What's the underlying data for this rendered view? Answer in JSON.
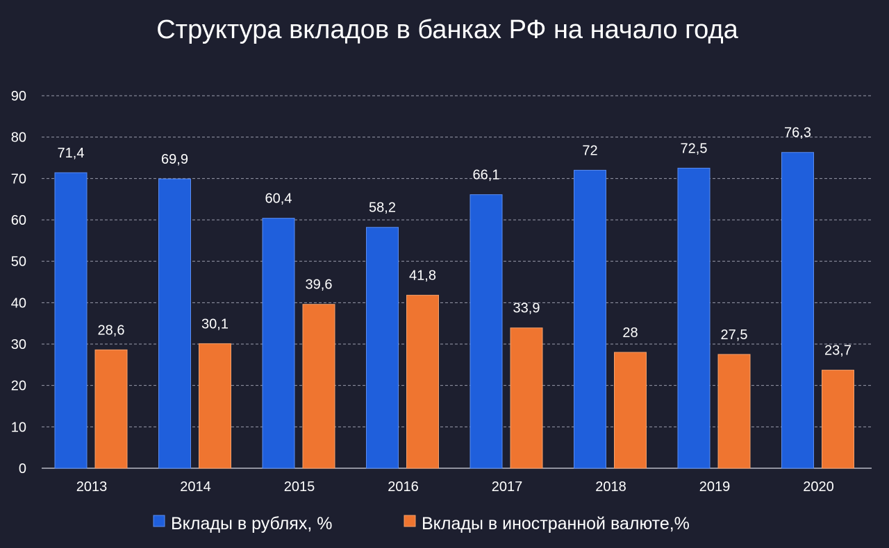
{
  "chart_data": {
    "type": "bar",
    "title": "Структура вкладов в банках РФ на начало года",
    "categories": [
      "2013",
      "2014",
      "2015",
      "2016",
      "2017",
      "2018",
      "2019",
      "2020"
    ],
    "series": [
      {
        "name": "Вклады в рублях, %",
        "color": "#1f5fdc",
        "values": [
          71.4,
          69.9,
          60.4,
          58.2,
          66.1,
          72,
          72.5,
          76.3
        ],
        "labels": [
          "71,4",
          "69,9",
          "60,4",
          "58,2",
          "66,1",
          "72",
          "72,5",
          "76,3"
        ]
      },
      {
        "name": "Вклады в иностранной валюте,%",
        "color": "#ef7530",
        "values": [
          28.6,
          30.1,
          39.6,
          41.8,
          33.9,
          28,
          27.5,
          23.7
        ],
        "labels": [
          "28,6",
          "30,1",
          "39,6",
          "41,8",
          "33,9",
          "28",
          "27,5",
          "23,7"
        ]
      }
    ],
    "ylim": [
      0,
      90
    ],
    "yticks": [
      0,
      10,
      20,
      30,
      40,
      50,
      60,
      70,
      80,
      90
    ],
    "grid": true,
    "legend_position": "bottom"
  }
}
